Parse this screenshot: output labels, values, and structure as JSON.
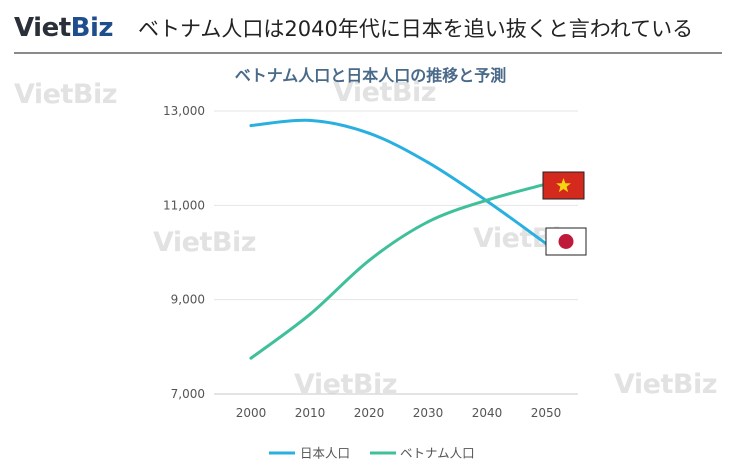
{
  "header": {
    "logo_viet": "Viet",
    "logo_biz": "Biz",
    "headline": "ベトナム人口は2040年代に日本を追い抜くと言われている"
  },
  "watermark": "VietBiz",
  "chart_data": {
    "type": "line",
    "title": "ベトナム人口と日本人口の推移と予測",
    "xlabel": "",
    "ylabel": "",
    "x": [
      2000,
      2010,
      2020,
      2030,
      2040,
      2050
    ],
    "ylim": [
      7000,
      13000
    ],
    "yticks": [
      7000,
      9000,
      11000,
      13000
    ],
    "ytick_labels": [
      "7,000",
      "9,000",
      "11,000",
      "13,000"
    ],
    "grid": "horizontal",
    "legend_position": "bottom",
    "series": [
      {
        "name": "日本人口",
        "color": "#2ab0e0",
        "flag": "japan-flag",
        "values": [
          12690,
          12800,
          12530,
          11910,
          11090,
          10190
        ]
      },
      {
        "name": "ベトナム人口",
        "color": "#3fc09a",
        "flag": "vietnam-flag",
        "values": [
          7760,
          8690,
          9830,
          10650,
          11110,
          11450
        ]
      }
    ]
  }
}
